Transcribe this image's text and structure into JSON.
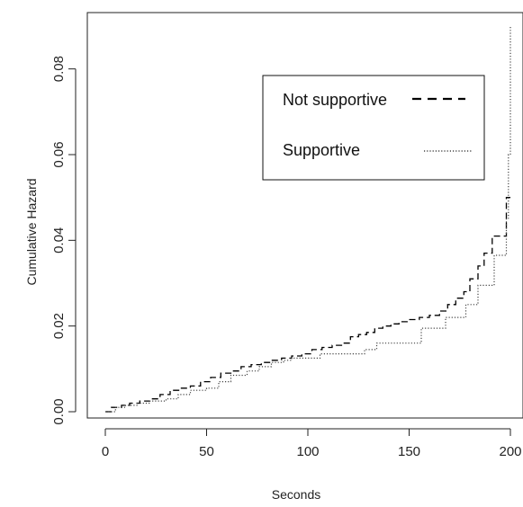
{
  "chart_data": {
    "type": "line",
    "title": "",
    "xlabel": "Seconds",
    "ylabel": "Cumulative Hazard",
    "xlim": [
      0,
      200
    ],
    "ylim": [
      0,
      0.09
    ],
    "grid": false,
    "legend_position": "top-right",
    "x_ticks": [
      "0",
      "50",
      "100",
      "150",
      "200"
    ],
    "y_ticks": [
      "0.00",
      "0.02",
      "0.04",
      "0.06",
      "0.08"
    ],
    "series": [
      {
        "name": "Not supportive",
        "line_style": "dashed",
        "color": "#000000",
        "points": [
          [
            0,
            0.0
          ],
          [
            3,
            0.001
          ],
          [
            8,
            0.0015
          ],
          [
            12,
            0.002
          ],
          [
            17,
            0.0025
          ],
          [
            22,
            0.003
          ],
          [
            27,
            0.004
          ],
          [
            32,
            0.005
          ],
          [
            37,
            0.0055
          ],
          [
            42,
            0.006
          ],
          [
            47,
            0.007
          ],
          [
            52,
            0.008
          ],
          [
            57,
            0.009
          ],
          [
            62,
            0.0095
          ],
          [
            67,
            0.0105
          ],
          [
            72,
            0.011
          ],
          [
            77,
            0.0115
          ],
          [
            82,
            0.012
          ],
          [
            87,
            0.0125
          ],
          [
            92,
            0.013
          ],
          [
            97,
            0.0135
          ],
          [
            102,
            0.0145
          ],
          [
            107,
            0.015
          ],
          [
            112,
            0.0155
          ],
          [
            117,
            0.016
          ],
          [
            121,
            0.0175
          ],
          [
            125,
            0.018
          ],
          [
            129,
            0.0185
          ],
          [
            133,
            0.0195
          ],
          [
            137,
            0.02
          ],
          [
            141,
            0.0205
          ],
          [
            145,
            0.021
          ],
          [
            150,
            0.0215
          ],
          [
            155,
            0.022
          ],
          [
            160,
            0.0225
          ],
          [
            165,
            0.0235
          ],
          [
            169,
            0.025
          ],
          [
            173,
            0.0265
          ],
          [
            177,
            0.028
          ],
          [
            180,
            0.031
          ],
          [
            184,
            0.034
          ],
          [
            187,
            0.037
          ],
          [
            191,
            0.041
          ],
          [
            195,
            0.041
          ],
          [
            198,
            0.05
          ],
          [
            200,
            0.05
          ]
        ]
      },
      {
        "name": "Supportive",
        "line_style": "dotted",
        "color": "#444444",
        "points": [
          [
            0,
            0.0
          ],
          [
            5,
            0.001
          ],
          [
            10,
            0.0015
          ],
          [
            16,
            0.002
          ],
          [
            22,
            0.0025
          ],
          [
            30,
            0.003
          ],
          [
            36,
            0.004
          ],
          [
            42,
            0.005
          ],
          [
            50,
            0.0055
          ],
          [
            56,
            0.007
          ],
          [
            62,
            0.0085
          ],
          [
            70,
            0.0095
          ],
          [
            76,
            0.0105
          ],
          [
            82,
            0.0115
          ],
          [
            88,
            0.012
          ],
          [
            92,
            0.0125
          ],
          [
            102,
            0.0125
          ],
          [
            106,
            0.0135
          ],
          [
            122,
            0.0135
          ],
          [
            128,
            0.0145
          ],
          [
            134,
            0.016
          ],
          [
            140,
            0.016
          ],
          [
            154,
            0.016
          ],
          [
            156,
            0.0195
          ],
          [
            166,
            0.0195
          ],
          [
            168,
            0.022
          ],
          [
            176,
            0.022
          ],
          [
            178,
            0.025
          ],
          [
            184,
            0.0295
          ],
          [
            190,
            0.0295
          ],
          [
            192,
            0.0365
          ],
          [
            197,
            0.0365
          ],
          [
            198,
            0.045
          ],
          [
            199,
            0.06
          ],
          [
            200,
            0.09
          ]
        ]
      }
    ]
  }
}
